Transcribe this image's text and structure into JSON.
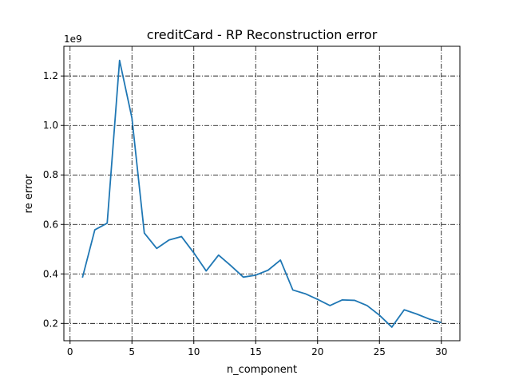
{
  "chart_data": {
    "type": "line",
    "title": "creditCard - RP Reconstruction error",
    "xlabel": "n_component",
    "ylabel": "re error",
    "y_offset_label": "1e9",
    "xlim": [
      -0.5,
      31.5
    ],
    "ylim": [
      0.13,
      1.32
    ],
    "x_ticks": [
      0,
      5,
      10,
      15,
      20,
      25,
      30
    ],
    "x_tick_labels": [
      "0",
      "5",
      "10",
      "15",
      "20",
      "25",
      "30"
    ],
    "y_ticks": [
      0.2,
      0.4,
      0.6,
      0.8,
      1.0,
      1.2
    ],
    "y_tick_labels": [
      "0.2",
      "0.4",
      "0.6",
      "0.8",
      "1.0",
      "1.2"
    ],
    "grid": true,
    "grid_style": "dash-dot",
    "series": [
      {
        "color": "#1f77b4",
        "x": [
          1,
          2,
          3,
          4,
          5,
          6,
          7,
          8,
          9,
          10,
          11,
          12,
          13,
          14,
          15,
          16,
          17,
          18,
          19,
          20,
          21,
          22,
          23,
          24,
          25,
          26,
          27,
          28,
          29,
          30
        ],
        "values": [
          0.385,
          0.578,
          0.605,
          1.263,
          1.03,
          0.565,
          0.503,
          0.537,
          0.551,
          0.485,
          0.412,
          0.476,
          0.433,
          0.387,
          0.395,
          0.415,
          0.456,
          0.335,
          0.32,
          0.297,
          0.272,
          0.295,
          0.293,
          0.272,
          0.233,
          0.185,
          0.255,
          0.238,
          0.218,
          0.203
        ]
      }
    ]
  }
}
